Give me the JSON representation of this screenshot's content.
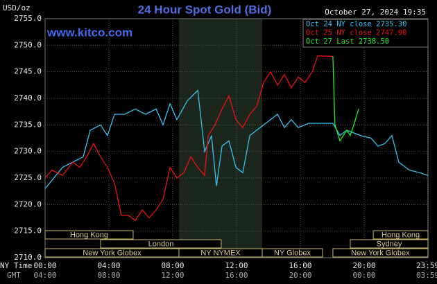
{
  "chart_data": {
    "type": "line",
    "title": "24 Hour Spot Gold (Bid)",
    "watermark": "www.kitco.com",
    "timestamp": "October 27, 2024 19:35",
    "y_unit": "USD/oz",
    "x_row_labels": [
      "NY Time",
      "GMT"
    ],
    "xlim": [
      0,
      24
    ],
    "ylim": [
      2710,
      2755
    ],
    "yticks": [
      {
        "value": 2710,
        "label": "2710.0"
      },
      {
        "value": 2715,
        "label": "2715.0"
      },
      {
        "value": 2720,
        "label": "2720.0"
      },
      {
        "value": 2725,
        "label": "2725.0"
      },
      {
        "value": 2730,
        "label": "2730.0"
      },
      {
        "value": 2735,
        "label": "2735.0"
      },
      {
        "value": 2740,
        "label": "2740.0"
      },
      {
        "value": 2745,
        "label": "2745.0"
      },
      {
        "value": 2750,
        "label": "2750.0"
      },
      {
        "value": 2755,
        "label": "2755.0"
      }
    ],
    "xticks": [
      {
        "value": 0,
        "label": "00:00"
      },
      {
        "value": 4,
        "label": "04:00"
      },
      {
        "value": 8,
        "label": "08:00"
      },
      {
        "value": 12,
        "label": "12:00"
      },
      {
        "value": 16,
        "label": "16:00"
      },
      {
        "value": 20,
        "label": "20:00"
      },
      {
        "value": 23.98,
        "label": "23:59"
      }
    ],
    "xticks_gmt": [
      {
        "value": 0,
        "label": "04:00"
      },
      {
        "value": 4,
        "label": "08:00"
      },
      {
        "value": 8,
        "label": "12:00"
      },
      {
        "value": 12,
        "label": "16:00"
      },
      {
        "value": 16,
        "label": "20:00"
      },
      {
        "value": 20,
        "label": "00:00"
      },
      {
        "value": 23.98,
        "label": "03:59"
      }
    ],
    "grid": true,
    "highlight": {
      "start": 8.39,
      "end": 13.61
    },
    "session_rows": [
      [
        {
          "label": "Hong Kong",
          "start": 0,
          "end": 5.52
        },
        {
          "label": "Hong Kong",
          "start": 20.57,
          "end": 24
        }
      ],
      [
        {
          "label": "London",
          "start": 3.48,
          "end": 11.04
        },
        {
          "label": "Sydney",
          "start": 19.13,
          "end": 24
        }
      ],
      [
        {
          "label": "New York Globex",
          "start": 0,
          "end": 8.39
        },
        {
          "label": "NY NYMEX",
          "start": 8.39,
          "end": 13.61
        },
        {
          "label": "NY Globex",
          "start": 13.61,
          "end": 17.39
        },
        {
          "label": "New York Globex",
          "start": 18.04,
          "end": 24
        }
      ]
    ],
    "series": [
      {
        "name": "Oct 24 NY close 2735.30",
        "color": "#33c3f0",
        "x": [
          0,
          1.09,
          2.39,
          2.83,
          3.48,
          3.91,
          4.35,
          5.0,
          5.65,
          6.3,
          6.96,
          7.39,
          7.83,
          8.26,
          8.91,
          9.57,
          9.78,
          10.0,
          10.43,
          10.74,
          11.09,
          11.52,
          11.96,
          12.39,
          12.83,
          13.26,
          13.7,
          14.13,
          14.57,
          15.0,
          15.43,
          15.87,
          16.52,
          18.04,
          18.48,
          18.91,
          19.78,
          20.43,
          20.87,
          21.3,
          21.74,
          22.17,
          22.83,
          23.48,
          24
        ],
        "values": [
          2723,
          2727,
          2729,
          2734,
          2735,
          2733,
          2737,
          2737,
          2738,
          2737,
          2738,
          2735,
          2739,
          2736,
          2739.5,
          2741.5,
          2736,
          2730,
          2733,
          2723.5,
          2731,
          2732,
          2727,
          2726,
          2733,
          2734,
          2735,
          2736,
          2737,
          2734.5,
          2736,
          2734.5,
          2735.3,
          2735.3,
          2733,
          2734,
          2733,
          2732.5,
          2731,
          2731.5,
          2733,
          2728,
          2726.5,
          2726,
          2725.5
        ]
      },
      {
        "name": "Oct 25 NY close 2747.90",
        "color": "#ee1111",
        "x": [
          0,
          0.43,
          1.09,
          1.74,
          2.17,
          2.61,
          3.04,
          3.48,
          3.91,
          4.35,
          4.78,
          5.22,
          5.65,
          6.09,
          6.52,
          6.96,
          7.39,
          7.83,
          8.26,
          8.7,
          9.13,
          9.57,
          10.0,
          10.22,
          10.65,
          11.09,
          11.52,
          11.96,
          12.39,
          12.83,
          13.26,
          13.7,
          14.13,
          14.57,
          15.0,
          15.43,
          15.87,
          16.3,
          16.74,
          17.09,
          18.04
        ],
        "values": [
          2725,
          2726.5,
          2725.5,
          2728,
          2727,
          2729,
          2731.5,
          2729,
          2727,
          2724,
          2718,
          2718,
          2717,
          2719,
          2717.5,
          2719,
          2721,
          2727,
          2725,
          2726,
          2729,
          2727,
          2725.5,
          2733,
          2735,
          2738,
          2740.5,
          2736,
          2734.5,
          2737,
          2738.5,
          2743,
          2745,
          2742.5,
          2744.5,
          2742,
          2744,
          2743,
          2745,
          2748,
          2747.9
        ]
      },
      {
        "name": "Oct 27 Last 2738.50",
        "color": "#22ee22",
        "x": [
          18.04,
          18.17,
          18.48,
          18.91,
          19.13,
          19.35,
          19.65
        ],
        "values": [
          2747.9,
          2735,
          2732,
          2734,
          2733,
          2735,
          2738
        ]
      }
    ]
  }
}
